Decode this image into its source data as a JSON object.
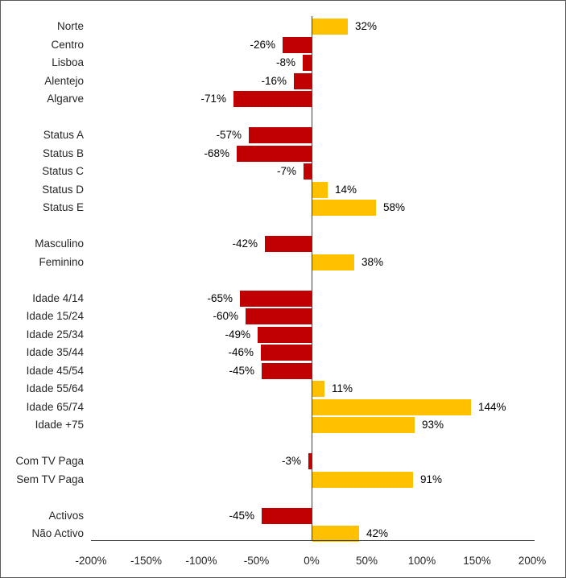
{
  "chart_data": {
    "type": "bar",
    "orientation": "horizontal",
    "title": "",
    "xlabel": "",
    "ylabel": "",
    "unit": "%",
    "xlim": [
      -200,
      200
    ],
    "grid": false,
    "legend": "none",
    "x_ticks": [
      {
        "label": "-200%",
        "value": -200
      },
      {
        "label": "-150%",
        "value": -150
      },
      {
        "label": "-100%",
        "value": -100
      },
      {
        "label": "-50%",
        "value": -50
      },
      {
        "label": "0%",
        "value": 0
      },
      {
        "label": "50%",
        "value": 50
      },
      {
        "label": "100%",
        "value": 100
      },
      {
        "label": "150%",
        "value": 150
      },
      {
        "label": "200%",
        "value": 200
      }
    ],
    "colors": {
      "negative_bar": "#C00000",
      "positive_bar": "#FFC000",
      "axis": "#404040",
      "text": "#262626"
    },
    "groups": [
      {
        "name": "regiao",
        "items": [
          {
            "label": "Norte",
            "value": 32,
            "data_label": "32%"
          },
          {
            "label": "Centro",
            "value": -26,
            "data_label": "-26%"
          },
          {
            "label": "Lisboa",
            "value": -8,
            "data_label": "-8%"
          },
          {
            "label": "Alentejo",
            "value": -16,
            "data_label": "-16%"
          },
          {
            "label": "Algarve",
            "value": -71,
            "data_label": "-71%"
          }
        ]
      },
      {
        "name": "status",
        "items": [
          {
            "label": "Status A",
            "value": -57,
            "data_label": "-57%"
          },
          {
            "label": "Status B",
            "value": -68,
            "data_label": "-68%"
          },
          {
            "label": "Status C",
            "value": -7,
            "data_label": "-7%"
          },
          {
            "label": "Status D",
            "value": 14,
            "data_label": "14%"
          },
          {
            "label": "Status E",
            "value": 58,
            "data_label": "58%"
          }
        ]
      },
      {
        "name": "genero",
        "items": [
          {
            "label": "Masculino",
            "value": -42,
            "data_label": "-42%"
          },
          {
            "label": "Feminino",
            "value": 38,
            "data_label": "38%"
          }
        ]
      },
      {
        "name": "idade",
        "items": [
          {
            "label": "Idade 4/14",
            "value": -65,
            "data_label": "-65%"
          },
          {
            "label": "Idade 15/24",
            "value": -60,
            "data_label": "-60%"
          },
          {
            "label": "Idade 25/34",
            "value": -49,
            "data_label": "-49%"
          },
          {
            "label": "Idade 35/44",
            "value": -46,
            "data_label": "-46%"
          },
          {
            "label": "Idade 45/54",
            "value": -45,
            "data_label": "-45%"
          },
          {
            "label": "Idade 55/64",
            "value": 11,
            "data_label": "11%"
          },
          {
            "label": "Idade 65/74",
            "value": 144,
            "data_label": "144%"
          },
          {
            "label": "Idade +75",
            "value": 93,
            "data_label": "93%"
          }
        ]
      },
      {
        "name": "tv-paga",
        "items": [
          {
            "label": "Com TV Paga",
            "value": -3,
            "data_label": "-3%"
          },
          {
            "label": "Sem TV Paga",
            "value": 91,
            "data_label": "91%"
          }
        ]
      },
      {
        "name": "actividade",
        "items": [
          {
            "label": "Activos",
            "value": -45,
            "data_label": "-45%"
          },
          {
            "label": "Não Activo",
            "value": 42,
            "data_label": "42%"
          }
        ]
      }
    ]
  }
}
